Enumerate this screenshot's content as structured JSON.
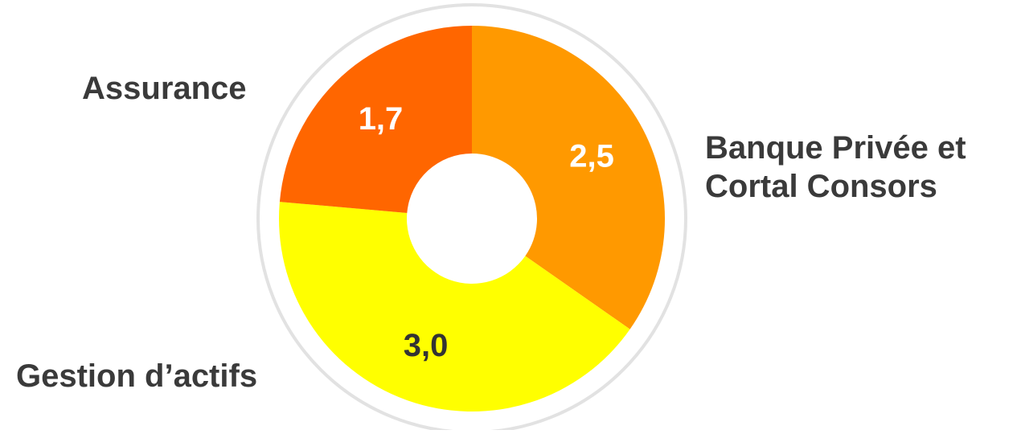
{
  "chart_data": {
    "type": "pie",
    "categories": [
      "Banque Privée et Cortal Consors",
      "Gestion d’actifs",
      "Assurance"
    ],
    "values": [
      2.5,
      3.0,
      1.7
    ],
    "value_labels": [
      "2,5",
      "3,0",
      "1,7"
    ],
    "colors": [
      "#FF9900",
      "#FFFF00",
      "#FF6600"
    ],
    "label_colors": [
      "#FFFFFF",
      "#333333",
      "#FFFFFF"
    ],
    "ring_color": "#E2E2E2",
    "title": "",
    "legend": "none"
  },
  "labels": {
    "assurance": "Assurance",
    "banque_line1": "Banque Privée et",
    "banque_line2": "Cortal Consors",
    "gestion": "Gestion d’actifs"
  }
}
